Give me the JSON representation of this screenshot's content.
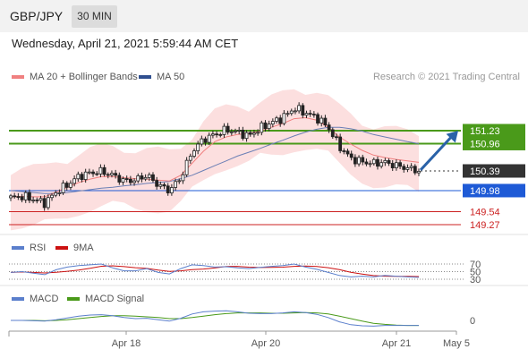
{
  "header": {
    "symbol": "GBP/JPY",
    "timeframe": "30 MIN",
    "datetime": "Wednesday, April 21, 2021 5:59:44 AM CET"
  },
  "price_panel": {
    "legend": [
      {
        "label": "MA 20 + Bollinger Bands",
        "color": "#f08080"
      },
      {
        "label": "MA 50",
        "color": "#2f4f8f"
      }
    ],
    "credit": "Research © 2021 Trading Central"
  },
  "rsi_panel": {
    "legend": [
      {
        "label": "RSI",
        "color": "#5b7fcc"
      },
      {
        "label": "9MA",
        "color": "#cc1111"
      }
    ],
    "levels": [
      "70",
      "50",
      "30"
    ]
  },
  "macd_panel": {
    "legend": [
      {
        "label": "MACD",
        "color": "#5b7fcc"
      },
      {
        "label": "MACD Signal",
        "color": "#4a9a1a"
      }
    ],
    "zero_label": "0"
  },
  "chart_data": {
    "type": "candlestick",
    "x_ticks": [
      "Apr 18",
      "Apr 20",
      "Apr 21",
      "May 5"
    ],
    "levels": [
      {
        "value": 151.23,
        "label": "151.23",
        "color": "#4a9a1a",
        "kind": "resistance"
      },
      {
        "value": 150.96,
        "label": "150.96",
        "color": "#4a9a1a",
        "kind": "resistance"
      },
      {
        "value": 150.39,
        "label": "150.39",
        "color": "#333333",
        "kind": "last price"
      },
      {
        "value": 149.98,
        "label": "149.98",
        "color": "#1e5ad6",
        "kind": "pivot"
      },
      {
        "value": 149.54,
        "label": "149.54",
        "color": "#cc2222",
        "kind": "support"
      },
      {
        "value": 149.27,
        "label": "149.27",
        "color": "#cc2222",
        "kind": "support"
      }
    ],
    "close_path": [
      149.83,
      149.86,
      149.8,
      149.72,
      149.95,
      150.1,
      150.28,
      150.35,
      150.38,
      150.3,
      150.18,
      150.2,
      150.3,
      150.1,
      149.98,
      150.25,
      150.8,
      151.05,
      151.15,
      151.25,
      151.2,
      151.12,
      151.28,
      151.4,
      151.5,
      151.7,
      151.6,
      151.5,
      151.3,
      150.9,
      150.65,
      150.58,
      150.55,
      150.57,
      150.5,
      150.45,
      150.39
    ],
    "ma20": [
      149.85,
      149.86,
      149.85,
      149.85,
      149.95,
      150.05,
      150.15,
      150.22,
      150.27,
      150.27,
      150.25,
      150.23,
      150.22,
      150.2,
      150.18,
      150.3,
      150.55,
      150.8,
      151.0,
      151.1,
      151.15,
      151.17,
      151.22,
      151.3,
      151.38,
      151.48,
      151.5,
      151.45,
      151.3,
      151.1,
      150.95,
      150.82,
      150.72,
      150.67,
      150.63,
      150.6,
      150.57
    ],
    "ma50": [
      149.98,
      149.96,
      149.94,
      149.92,
      149.92,
      149.94,
      149.97,
      150.0,
      150.03,
      150.05,
      150.08,
      150.1,
      150.13,
      150.15,
      150.17,
      150.23,
      150.3,
      150.4,
      150.5,
      150.6,
      150.7,
      150.78,
      150.86,
      150.95,
      151.03,
      151.12,
      151.2,
      151.26,
      151.3,
      151.3,
      151.27,
      151.22,
      151.15,
      151.1,
      151.05,
      151.0,
      150.96
    ],
    "rsi": [
      48,
      50,
      46,
      42,
      55,
      62,
      66,
      68,
      70,
      60,
      52,
      52,
      58,
      48,
      44,
      58,
      68,
      66,
      62,
      63,
      60,
      58,
      61,
      64,
      66,
      70,
      62,
      56,
      48,
      40,
      36,
      38,
      36,
      40,
      38,
      36,
      35
    ],
    "macd": [
      0.0,
      0.0,
      -0.01,
      -0.02,
      0.02,
      0.07,
      0.12,
      0.15,
      0.16,
      0.13,
      0.08,
      0.05,
      0.06,
      0.02,
      -0.02,
      0.06,
      0.18,
      0.24,
      0.26,
      0.27,
      0.24,
      0.2,
      0.19,
      0.19,
      0.21,
      0.24,
      0.22,
      0.17,
      0.08,
      -0.04,
      -0.12,
      -0.15,
      -0.16,
      -0.14,
      -0.14,
      -0.14,
      -0.14
    ],
    "macd_signal": [
      0.0,
      0.0,
      0.0,
      -0.01,
      0.0,
      0.02,
      0.05,
      0.08,
      0.11,
      0.13,
      0.13,
      0.12,
      0.1,
      0.08,
      0.05,
      0.05,
      0.08,
      0.12,
      0.16,
      0.19,
      0.21,
      0.21,
      0.21,
      0.2,
      0.2,
      0.21,
      0.22,
      0.21,
      0.18,
      0.12,
      0.05,
      -0.02,
      -0.08,
      -0.11,
      -0.13,
      -0.14,
      -0.14
    ],
    "forecast_arrow": {
      "from": 150.41,
      "to": 151.23
    }
  }
}
